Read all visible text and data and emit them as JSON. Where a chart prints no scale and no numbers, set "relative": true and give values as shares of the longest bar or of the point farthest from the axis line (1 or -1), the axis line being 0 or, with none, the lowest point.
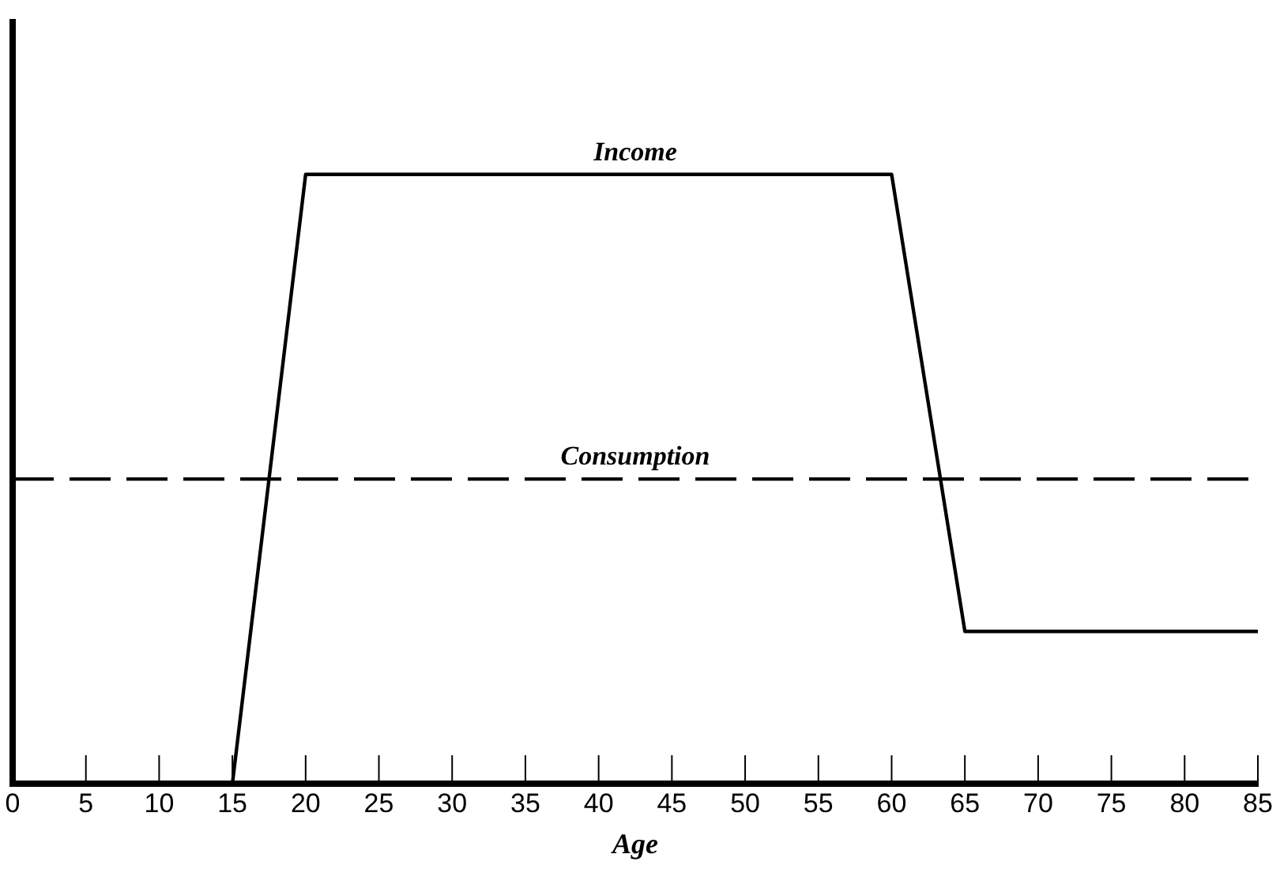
{
  "chart_data": {
    "type": "line",
    "relative": true,
    "xlabel": "Age",
    "xlim": [
      0,
      85
    ],
    "xticks": [
      0,
      5,
      10,
      15,
      20,
      25,
      30,
      35,
      40,
      45,
      50,
      55,
      60,
      65,
      70,
      75,
      80,
      85
    ],
    "grid": false,
    "legend": false,
    "marker": "none",
    "series": [
      {
        "name": "Income",
        "color": "#000000",
        "line_style": "solid",
        "x": [
          0,
          15,
          20,
          60,
          65,
          85
        ],
        "values": [
          0,
          0,
          1,
          1,
          0.25,
          0.25
        ]
      },
      {
        "name": "Consumption",
        "color": "#000000",
        "line_style": "dashed",
        "x": [
          0,
          85
        ],
        "values": [
          0.5,
          0.5
        ]
      }
    ]
  }
}
